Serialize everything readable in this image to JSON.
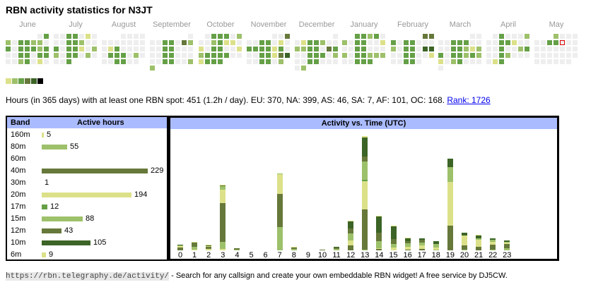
{
  "title": "RBN activity statistics for N3JT",
  "palette": [
    "#eeeeee",
    "#dce189",
    "#9dc06a",
    "#65a047",
    "#66783a",
    "#3b6426",
    "#000000"
  ],
  "heatmap": {
    "months": [
      {
        "label": "June",
        "rows": [
          [
            null,
            null,
            null,
            null,
            null,
            0,
            3
          ],
          [
            2,
            0,
            3,
            3,
            2,
            2,
            0
          ],
          [
            3,
            0,
            3,
            3,
            3,
            2,
            3
          ],
          [
            0,
            0,
            3,
            3,
            0,
            3,
            3
          ],
          [
            0,
            0,
            2,
            3,
            0,
            1,
            0
          ]
        ]
      },
      {
        "label": "July",
        "rows": [
          [
            0,
            0,
            3,
            3,
            0,
            1,
            0
          ],
          [
            0,
            0,
            3,
            3,
            2,
            0,
            0
          ],
          [
            3,
            0,
            3,
            3,
            1,
            0,
            2
          ],
          [
            2,
            0,
            3,
            3,
            0,
            2,
            0
          ],
          [
            0,
            0,
            3,
            null,
            null,
            null,
            null
          ]
        ]
      },
      {
        "label": "August",
        "rows": [
          [
            null,
            null,
            null,
            0,
            0,
            0,
            0
          ],
          [
            0,
            0,
            0,
            0,
            0,
            0,
            0
          ],
          [
            0,
            1,
            3,
            0,
            0,
            0,
            0
          ],
          [
            0,
            3,
            3,
            3,
            0,
            2,
            0
          ],
          [
            0,
            0,
            3,
            3,
            0,
            0,
            null
          ]
        ]
      },
      {
        "label": "September",
        "rows": [
          [
            null,
            null,
            null,
            null,
            null,
            null,
            0
          ],
          [
            0,
            0,
            3,
            3,
            0,
            4,
            2
          ],
          [
            0,
            0,
            3,
            3,
            0,
            0,
            0
          ],
          [
            0,
            0,
            3,
            3,
            0,
            0,
            0
          ],
          [
            0,
            0,
            3,
            3,
            0,
            0,
            2
          ],
          [
            2,
            null,
            null,
            null,
            null,
            null,
            null
          ]
        ]
      },
      {
        "label": "October",
        "rows": [
          [
            null,
            0,
            3,
            3,
            3,
            0,
            2
          ],
          [
            0,
            0,
            2,
            3,
            1,
            1,
            0
          ],
          [
            1,
            0,
            3,
            3,
            0,
            0,
            1
          ],
          [
            2,
            3,
            3,
            3,
            3,
            0,
            0
          ],
          [
            1,
            3,
            3,
            3,
            null,
            null,
            null
          ]
        ]
      },
      {
        "label": "November",
        "rows": [
          [
            null,
            null,
            null,
            null,
            0,
            0,
            4
          ],
          [
            0,
            0,
            3,
            3,
            0,
            1,
            0
          ],
          [
            3,
            3,
            3,
            3,
            1,
            3,
            0
          ],
          [
            0,
            0,
            3,
            3,
            1,
            4,
            5
          ],
          [
            0,
            0,
            3,
            3,
            0,
            2,
            null
          ]
        ]
      },
      {
        "label": "December",
        "rows": [
          [
            null,
            null,
            null,
            null,
            null,
            null,
            0
          ],
          [
            0,
            1,
            3,
            3,
            2,
            0,
            0
          ],
          [
            2,
            2,
            3,
            3,
            0,
            4,
            3
          ],
          [
            0,
            0,
            3,
            3,
            3,
            0,
            2
          ],
          [
            0,
            0,
            3,
            3,
            0,
            0,
            0
          ],
          [
            0,
            2,
            null,
            null,
            null,
            null,
            null
          ]
        ]
      },
      {
        "label": "January",
        "rows": [
          [
            null,
            null,
            3,
            3,
            2,
            3,
            0
          ],
          [
            2,
            0,
            3,
            3,
            0,
            0,
            1
          ],
          [
            0,
            0,
            3,
            3,
            0,
            0,
            0
          ],
          [
            2,
            0,
            3,
            3,
            2,
            2,
            2
          ],
          [
            0,
            0,
            3,
            3,
            3,
            null,
            null
          ]
        ]
      },
      {
        "label": "February",
        "rows": [
          [
            null,
            null,
            null,
            null,
            null,
            4,
            4
          ],
          [
            3,
            0,
            3,
            3,
            0,
            0,
            0
          ],
          [
            2,
            0,
            3,
            3,
            0,
            5,
            5
          ],
          [
            0,
            0,
            3,
            3,
            0,
            0,
            1
          ],
          [
            0,
            0,
            3,
            3,
            0,
            null,
            null
          ]
        ]
      },
      {
        "label": "March",
        "rows": [
          [
            null,
            null,
            null,
            null,
            null,
            0,
            0
          ],
          [
            0,
            0,
            3,
            3,
            3,
            0,
            0
          ],
          [
            0,
            0,
            3,
            3,
            2,
            1,
            2
          ],
          [
            3,
            0,
            3,
            3,
            2,
            3,
            2
          ],
          [
            1,
            0,
            2,
            3,
            0,
            0,
            0
          ],
          [
            0,
            null,
            null,
            null,
            null,
            null,
            null
          ]
        ]
      },
      {
        "label": "April",
        "rows": [
          [
            null,
            0,
            3,
            0,
            0,
            0,
            2
          ],
          [
            0,
            0,
            3,
            3,
            1,
            0,
            0
          ],
          [
            0,
            0,
            3,
            0,
            0,
            2,
            3
          ],
          [
            0,
            0,
            3,
            2,
            0,
            0,
            0
          ],
          [
            0,
            1,
            3,
            null,
            null,
            null,
            null
          ]
        ]
      },
      {
        "label": "May",
        "rows": [
          [
            null,
            null,
            null,
            2,
            0,
            0,
            0
          ],
          [
            0,
            0,
            3,
            3,
            0,
            0,
            0
          ],
          [
            0,
            0,
            0,
            0,
            0,
            0,
            0
          ],
          [
            0,
            0,
            0,
            0,
            0,
            0,
            0
          ],
          [
            0,
            0,
            0,
            0,
            0,
            0,
            null
          ]
        ]
      }
    ],
    "today_marker": {
      "month": "May",
      "row": 1,
      "col": 4,
      "color": "#dd0000"
    }
  },
  "legend_levels": [
    1,
    2,
    3,
    4,
    5,
    6
  ],
  "summary": {
    "text": "Hours (in 365 days) with at least one RBN spot: 451 (1.2h / day). EU: 370, NA: 399, AS: 46, SA: 7, AF: 101, OC: 168. ",
    "rank_link": "Rank: 1726"
  },
  "bands": {
    "header_band": "Band",
    "header_hours": "Active hours",
    "max": 229,
    "rows": [
      {
        "band": "160m",
        "hours": 5,
        "color": "#dce189"
      },
      {
        "band": "80m",
        "hours": 55,
        "color": "#9dc06a"
      },
      {
        "band": "60m",
        "hours": null,
        "color": "#65a047"
      },
      {
        "band": "40m",
        "hours": 229,
        "color": "#66783a"
      },
      {
        "band": "30m",
        "hours": 1,
        "color": "#3b6426"
      },
      {
        "band": "20m",
        "hours": 194,
        "color": "#dce189"
      },
      {
        "band": "17m",
        "hours": 12,
        "color": "#65a047"
      },
      {
        "band": "15m",
        "hours": 88,
        "color": "#9dc06a"
      },
      {
        "band": "12m",
        "hours": 43,
        "color": "#66783a"
      },
      {
        "band": "10m",
        "hours": 105,
        "color": "#3b6426"
      },
      {
        "band": "6m",
        "hours": 9,
        "color": "#dce189"
      }
    ]
  },
  "chart_data": {
    "type": "bar",
    "title": "Activity vs. Time (UTC)",
    "xlabel": "",
    "ylabel": "",
    "categories": [
      "0",
      "1",
      "2",
      "3",
      "4",
      "5",
      "6",
      "7",
      "8",
      "9",
      "10",
      "11",
      "12",
      "13",
      "14",
      "15",
      "16",
      "17",
      "18",
      "19",
      "20",
      "21",
      "22",
      "23"
    ],
    "stacked": true,
    "segments": [
      [
        [
          "#66783a",
          4
        ],
        [
          "#dce189",
          2
        ],
        [
          "#9dc06a",
          1
        ],
        [
          "#3b6426",
          1
        ]
      ],
      [
        [
          "#dce189",
          1
        ],
        [
          "#9dc06a",
          4
        ],
        [
          "#66783a",
          6
        ],
        [
          "#dce189",
          1
        ]
      ],
      [
        [
          "#dce189",
          2
        ],
        [
          "#66783a",
          3
        ],
        [
          "#dce189",
          1
        ],
        [
          "#3b6426",
          1
        ],
        [
          "#dce189",
          1
        ]
      ],
      [
        [
          "#dce189",
          2
        ],
        [
          "#9dc06a",
          10
        ],
        [
          "#66783a",
          55
        ],
        [
          "#dce189",
          19
        ],
        [
          "#9dc06a",
          5
        ],
        [
          "#66783a",
          1
        ],
        [
          "#dce189",
          1
        ]
      ],
      [
        [
          "#9dc06a",
          1
        ],
        [
          "#66783a",
          2
        ]
      ],
      [],
      [],
      [
        [
          "#9dc06a",
          33
        ],
        [
          "#66783a",
          47
        ],
        [
          "#dce189",
          28
        ],
        [
          "#9dc06a",
          1
        ]
      ],
      [
        [
          "#9dc06a",
          2
        ],
        [
          "#66783a",
          2
        ],
        [
          "#dce189",
          1
        ]
      ],
      [],
      [
        [
          "#66783a",
          1
        ]
      ],
      [
        [
          "#9dc06a",
          2
        ],
        [
          "#66783a",
          2
        ],
        [
          "#3b6426",
          1
        ]
      ],
      [
        [
          "#66783a",
          7
        ],
        [
          "#dce189",
          7
        ],
        [
          "#9dc06a",
          3
        ],
        [
          "#9dc06a",
          7
        ],
        [
          "#66783a",
          7
        ],
        [
          "#3b6426",
          10
        ],
        [
          "#dce189",
          1
        ]
      ],
      [
        [
          "#9dc06a",
          1
        ],
        [
          "#66783a",
          57
        ],
        [
          "#dce189",
          40
        ],
        [
          "#65a047",
          2
        ],
        [
          "#9dc06a",
          26
        ],
        [
          "#66783a",
          7
        ],
        [
          "#3b6426",
          27
        ],
        [
          "#dce189",
          2
        ]
      ],
      [
        [
          "#66783a",
          2
        ],
        [
          "#dce189",
          1
        ],
        [
          "#9dc06a",
          10
        ],
        [
          "#66783a",
          12
        ],
        [
          "#3b6426",
          23
        ],
        [
          "#dce189",
          1
        ]
      ],
      [
        [
          "#dce189",
          4
        ],
        [
          "#9dc06a",
          1
        ],
        [
          "#9dc06a",
          4
        ],
        [
          "#66783a",
          7
        ],
        [
          "#3b6426",
          18
        ],
        [
          "#dce189",
          1
        ]
      ],
      [
        [
          "#66783a",
          1
        ],
        [
          "#dce189",
          4
        ],
        [
          "#9dc06a",
          5
        ],
        [
          "#66783a",
          3
        ],
        [
          "#3b6426",
          4
        ],
        [
          "#dce189",
          1
        ]
      ],
      [
        [
          "#66783a",
          2
        ],
        [
          "#dce189",
          5
        ],
        [
          "#9dc06a",
          4
        ],
        [
          "#66783a",
          4
        ],
        [
          "#3b6426",
          2
        ]
      ],
      [
        [
          "#9dc06a",
          1
        ],
        [
          "#dce189",
          3
        ],
        [
          "#9dc06a",
          5
        ],
        [
          "#3b6426",
          4
        ]
      ],
      [
        [
          "#66783a",
          35
        ],
        [
          "#dce189",
          62
        ],
        [
          "#9dc06a",
          21
        ],
        [
          "#3b6426",
          12
        ]
      ],
      [
        [
          "#9dc06a",
          1
        ],
        [
          "#66783a",
          6
        ],
        [
          "#dce189",
          14
        ],
        [
          "#3b6426",
          4
        ]
      ],
      [
        [
          "#66783a",
          5
        ],
        [
          "#dce189",
          10
        ],
        [
          "#9dc06a",
          2
        ],
        [
          "#3b6426",
          4
        ],
        [
          "#dce189",
          1
        ]
      ],
      [
        [
          "#9dc06a",
          1
        ],
        [
          "#66783a",
          7
        ],
        [
          "#dce189",
          4
        ],
        [
          "#9dc06a",
          3
        ],
        [
          "#3b6426",
          2
        ]
      ],
      [
        [
          "#9dc06a",
          3
        ],
        [
          "#66783a",
          6
        ],
        [
          "#dce189",
          2
        ],
        [
          "#9dc06a",
          1
        ],
        [
          "#3b6426",
          2
        ]
      ]
    ],
    "ylim": [
      0,
      162
    ]
  },
  "footer": {
    "url": "https://rbn.telegraphy.de/activity/",
    "text": " - Search for any callsign and create your own embeddable RBN widget! A free service by DJ5CW."
  }
}
